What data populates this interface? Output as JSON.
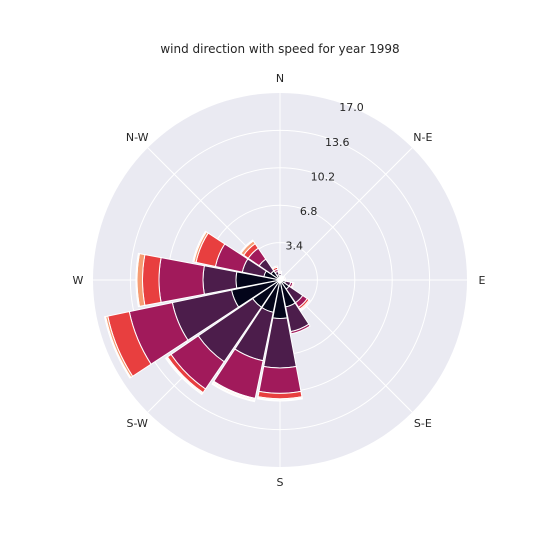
{
  "chart_data": {
    "type": "windrose",
    "title": "wind direction with speed for year 1998",
    "direction_labels": [
      "N",
      "N-E",
      "E",
      "S-E",
      "S",
      "S-W",
      "W",
      "N-W"
    ],
    "sectors": [
      "N",
      "NNE",
      "NE",
      "ENE",
      "E",
      "ESE",
      "SE",
      "SSE",
      "S",
      "SSW",
      "SW",
      "WSW",
      "W",
      "WNW",
      "NW",
      "NNW"
    ],
    "r_ticks": [
      "3.4",
      "6.8",
      "10.2",
      "13.6",
      "17.0"
    ],
    "rmax": 17.0,
    "bin_colors": [
      "#03051a",
      "#4c1d4b",
      "#a11a5b",
      "#e83f3f",
      "#f69c73",
      "#faebdd"
    ],
    "cumulative": [
      [
        0.4,
        0.6,
        0.7,
        0.8,
        0.8,
        0.8
      ],
      [
        0.2,
        0.3,
        0.35,
        0.4,
        0.4,
        0.4
      ],
      [
        0.2,
        0.25,
        0.3,
        0.3,
        0.3,
        0.3
      ],
      [
        0.3,
        0.4,
        0.5,
        0.5,
        0.5,
        0.5
      ],
      [
        0.2,
        0.3,
        0.3,
        0.3,
        0.3,
        0.3
      ],
      [
        0.5,
        1.0,
        1.2,
        1.3,
        1.3,
        1.3
      ],
      [
        1.0,
        2.5,
        3.0,
        3.2,
        3.3,
        3.3
      ],
      [
        2.5,
        4.8,
        5.0,
        5.0,
        5.0,
        5.0
      ],
      [
        3.5,
        8.0,
        10.3,
        10.8,
        10.9,
        11.0
      ],
      [
        3.0,
        7.5,
        11.0,
        11.1,
        11.2,
        11.3
      ],
      [
        3.0,
        9.0,
        12.0,
        12.4,
        12.5,
        12.6
      ],
      [
        4.5,
        10.0,
        14.0,
        16.0,
        16.2,
        16.3
      ],
      [
        4.0,
        7.0,
        11.0,
        12.5,
        13.0,
        13.1
      ],
      [
        1.5,
        3.5,
        6.0,
        7.8,
        8.0,
        8.1
      ],
      [
        1.0,
        2.3,
        3.5,
        4.0,
        4.3,
        4.4
      ],
      [
        0.5,
        0.8,
        1.0,
        1.2,
        1.3,
        1.3
      ]
    ]
  }
}
